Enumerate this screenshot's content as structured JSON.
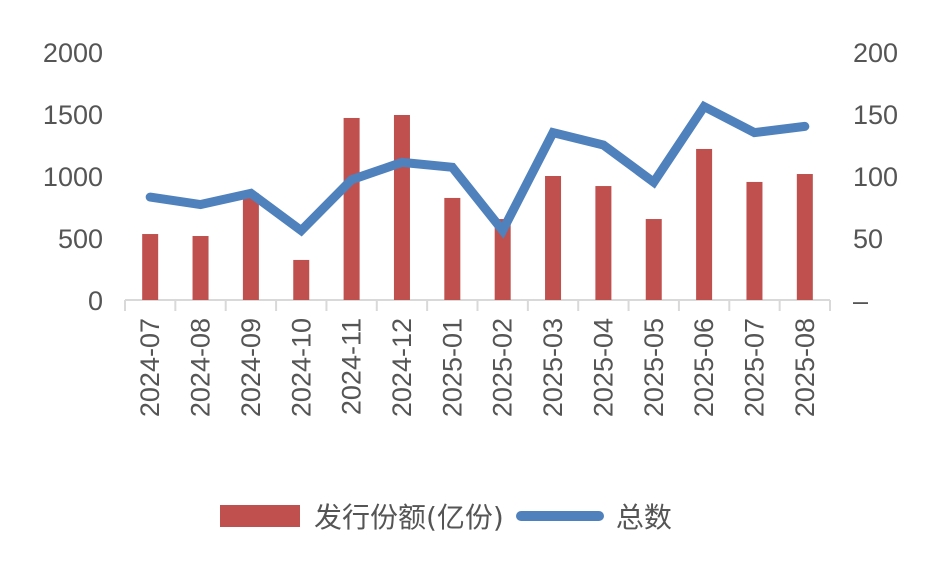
{
  "chart_data": {
    "type": "bar+line",
    "title": "",
    "categories": [
      "2024-07",
      "2024-08",
      "2024-09",
      "2024-10",
      "2024-11",
      "2024-12",
      "2025-01",
      "2025-02",
      "2025-03",
      "2025-04",
      "2025-05",
      "2025-06",
      "2025-07",
      "2025-08"
    ],
    "series": [
      {
        "name": "发行份额(亿份)",
        "type": "bar",
        "axis": "left",
        "color": "#c0504d",
        "values": [
          532,
          516,
          860,
          323,
          1468,
          1492,
          823,
          653,
          1000,
          919,
          653,
          1218,
          952,
          1016
        ]
      },
      {
        "name": "总数",
        "type": "line",
        "axis": "right",
        "color": "#4f81bd",
        "values": [
          83,
          77,
          86,
          56,
          97,
          111,
          107,
          56,
          135,
          125,
          95,
          156,
          135,
          140
        ]
      }
    ],
    "left_axis": {
      "ylim": [
        0,
        2000
      ],
      "ticks": [
        "0",
        "500",
        "1000",
        "1500",
        "2000"
      ]
    },
    "right_axis": {
      "ylim": [
        0,
        200
      ],
      "ticks": [
        "–",
        "50",
        "100",
        "150",
        "200"
      ]
    },
    "xlabel": "",
    "ylabel": "",
    "grid": false,
    "legend_position": "bottom"
  },
  "legend": {
    "bar_label": "发行份额(亿份)",
    "line_label": "总数"
  }
}
